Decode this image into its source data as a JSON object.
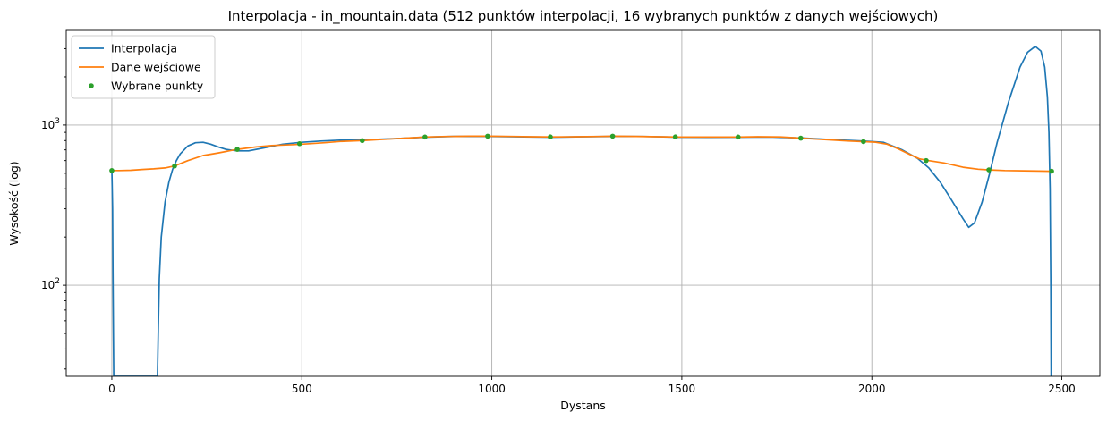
{
  "chart_data": {
    "type": "line",
    "title": "Interpolacja - in_mountain.data (512 punktów interpolacji, 16 wybranych punktów z danych wejściowych)",
    "xlabel": "Dystans",
    "ylabel": "Wysokość (log)",
    "xscale": "linear",
    "yscale": "log",
    "xlim": [
      -120,
      2600
    ],
    "ylim": [
      27,
      3900
    ],
    "grid": true,
    "legend_position": "upper-left",
    "x_ticks": [
      {
        "value": 0,
        "label": "0"
      },
      {
        "value": 500,
        "label": "500"
      },
      {
        "value": 1000,
        "label": "1000"
      },
      {
        "value": 1500,
        "label": "1500"
      },
      {
        "value": 2000,
        "label": "2000"
      },
      {
        "value": 2500,
        "label": "2500"
      }
    ],
    "y_ticks": [
      {
        "value": 100,
        "base": "10",
        "exp": "2"
      },
      {
        "value": 1000,
        "base": "10",
        "exp": "3"
      }
    ],
    "series": [
      {
        "name": "Interpolacja",
        "style": "line",
        "color": "#1f77b4",
        "x": [
          0,
          2,
          3,
          4,
          5,
          120,
          122,
          125,
          130,
          140,
          150,
          160,
          170,
          180,
          200,
          220,
          240,
          260,
          280,
          300,
          330,
          360,
          400,
          450,
          500,
          550,
          600,
          660,
          700,
          760,
          824,
          900,
          990,
          1060,
          1160,
          1240,
          1320,
          1400,
          1490,
          1570,
          1650,
          1730,
          1815,
          1900,
          1980,
          2030,
          2080,
          2120,
          2150,
          2180,
          2210,
          2240,
          2255,
          2270,
          2290,
          2310,
          2330,
          2360,
          2390,
          2410,
          2430,
          2445,
          2455,
          2462,
          2466,
          2469,
          2471,
          2472
        ],
        "y": [
          520,
          300,
          120,
          50,
          27,
          27,
          50,
          110,
          200,
          330,
          440,
          530,
          600,
          660,
          740,
          775,
          780,
          760,
          730,
          705,
          690,
          690,
          720,
          760,
          780,
          795,
          805,
          810,
          815,
          825,
          840,
          850,
          850,
          845,
          840,
          845,
          850,
          848,
          840,
          838,
          840,
          842,
          830,
          810,
          795,
          780,
          700,
          620,
          540,
          440,
          340,
          260,
          230,
          245,
          330,
          500,
          780,
          1400,
          2300,
          2850,
          3100,
          2900,
          2300,
          1500,
          900,
          400,
          100,
          27
        ]
      },
      {
        "name": "Dane wejściowe",
        "style": "line",
        "color": "#ff7f0e",
        "x": [
          0,
          20,
          50,
          80,
          110,
          140,
          165,
          200,
          240,
          280,
          330,
          380,
          420,
          480,
          520,
          560,
          600,
          660,
          720,
          780,
          824,
          880,
          940,
          990,
          1060,
          1100,
          1160,
          1220,
          1280,
          1320,
          1380,
          1440,
          1490,
          1560,
          1600,
          1650,
          1700,
          1760,
          1815,
          1880,
          1940,
          1980,
          2010,
          2040,
          2070,
          2100,
          2125,
          2150,
          2190,
          2240,
          2280,
          2310,
          2350,
          2400,
          2440,
          2473
        ],
        "y": [
          520,
          520,
          522,
          528,
          533,
          540,
          555,
          600,
          645,
          670,
          705,
          730,
          745,
          755,
          765,
          775,
          790,
          800,
          815,
          830,
          842,
          848,
          852,
          852,
          848,
          845,
          843,
          845,
          848,
          852,
          850,
          845,
          842,
          842,
          842,
          842,
          845,
          843,
          828,
          810,
          795,
          788,
          782,
          760,
          710,
          655,
          615,
          600,
          580,
          545,
          530,
          525,
          520,
          518,
          516,
          515
        ]
      },
      {
        "name": "Wybrane punkty",
        "style": "markers",
        "color": "#2ca02c",
        "x": [
          0,
          165,
          330,
          494,
          659,
          824,
          989,
          1154,
          1318,
          1483,
          1648,
          1813,
          1978,
          2143,
          2308,
          2473
        ],
        "y": [
          520,
          555,
          705,
          765,
          800,
          842,
          852,
          843,
          852,
          843,
          842,
          828,
          788,
          600,
          525,
          515
        ]
      }
    ]
  }
}
